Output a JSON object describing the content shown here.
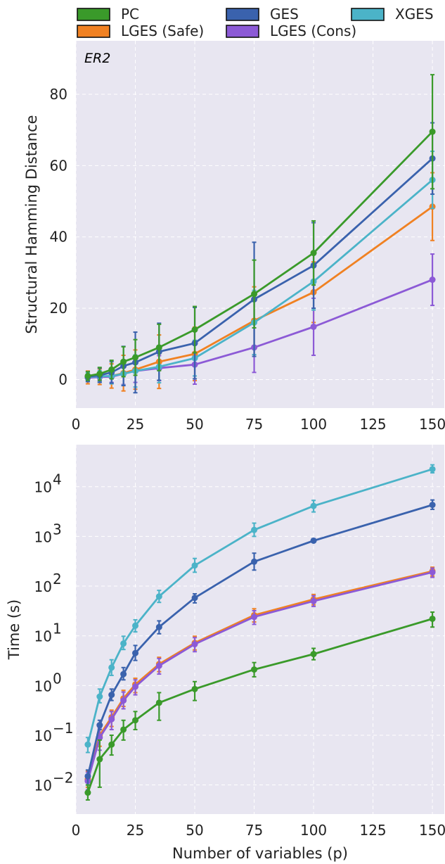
{
  "legend": [
    {
      "label": "PC",
      "color": "#3a9a2a"
    },
    {
      "label": "GES",
      "color": "#3a62ad"
    },
    {
      "label": "XGES",
      "color": "#4bb3c8"
    },
    {
      "label": "LGES (Safe)",
      "color": "#f08122"
    },
    {
      "label": "LGES (Cons)",
      "color": "#8c5ad6"
    }
  ],
  "chart_data": [
    {
      "type": "line",
      "annotation": "ER2",
      "xlabel": "",
      "ylabel": "Structural Hamming Distance",
      "x": [
        5,
        10,
        15,
        20,
        25,
        35,
        50,
        75,
        100,
        150
      ],
      "xlim": [
        0,
        155
      ],
      "ylim": [
        -8,
        95
      ],
      "xticks": [
        0,
        25,
        50,
        75,
        100,
        125,
        150
      ],
      "yticks": [
        0,
        20,
        40,
        60,
        80
      ],
      "grid": true,
      "series": [
        {
          "name": "PC",
          "color": "#3a9a2a",
          "values": [
            1.0,
            1.6,
            2.8,
            5.0,
            6.2,
            9.0,
            14.0,
            24.0,
            35.5,
            69.5
          ],
          "errors": [
            1.2,
            1.8,
            2.6,
            4.2,
            5.0,
            6.5,
            6.5,
            9.5,
            9.0,
            16.0
          ]
        },
        {
          "name": "GES",
          "color": "#3a62ad",
          "values": [
            0.8,
            1.2,
            2.0,
            3.8,
            4.8,
            7.8,
            10.2,
            22.5,
            32.0,
            62.0
          ],
          "errors": [
            1.4,
            2.0,
            3.0,
            5.5,
            8.5,
            8.0,
            10.0,
            16.0,
            12.0,
            10.0
          ]
        },
        {
          "name": "XGES",
          "color": "#4bb3c8",
          "values": [
            0.7,
            0.9,
            1.0,
            1.6,
            2.4,
            3.6,
            6.0,
            16.0,
            27.5,
            56.0
          ],
          "errors": [
            1.2,
            1.6,
            2.2,
            3.2,
            4.5,
            4.5,
            5.0,
            9.0,
            8.0,
            8.0
          ]
        },
        {
          "name": "LGES (Safe)",
          "color": "#f08122",
          "values": [
            0.6,
            0.8,
            1.0,
            1.8,
            2.8,
            5.0,
            7.2,
            16.5,
            24.5,
            48.5
          ],
          "errors": [
            1.8,
            2.2,
            3.4,
            5.0,
            5.5,
            7.5,
            7.5,
            9.5,
            8.5,
            9.5
          ]
        },
        {
          "name": "LGES (Cons)",
          "color": "#8c5ad6",
          "values": [
            0.5,
            0.7,
            0.8,
            1.6,
            2.4,
            3.2,
            4.2,
            9.0,
            14.8,
            28.0
          ],
          "errors": [
            0.8,
            1.2,
            1.6,
            3.0,
            3.2,
            3.5,
            5.5,
            7.0,
            8.0,
            7.2
          ]
        }
      ]
    },
    {
      "type": "line",
      "xlabel": "Number of variables (p)",
      "ylabel": "Time (s)",
      "yscale": "log",
      "x": [
        5,
        10,
        15,
        20,
        25,
        35,
        50,
        75,
        100,
        150
      ],
      "xlim": [
        0,
        155
      ],
      "ylim": [
        0.0026,
        70000
      ],
      "xticks": [
        0,
        25,
        50,
        75,
        100,
        125,
        150
      ],
      "yticks_exponents": [
        -2,
        -1,
        0,
        1,
        2,
        3,
        4
      ],
      "ytick_labels": [
        "10^-2",
        "10^-1",
        "10^0",
        "10^1",
        "10^2",
        "10^3",
        "10^4"
      ],
      "grid": true,
      "series": [
        {
          "name": "PC",
          "color": "#3a9a2a",
          "values": [
            0.007,
            0.033,
            0.065,
            0.13,
            0.2,
            0.45,
            0.85,
            2.1,
            4.3,
            22
          ],
          "err_low": [
            0.005,
            0.009,
            0.04,
            0.08,
            0.13,
            0.2,
            0.5,
            1.5,
            3.3,
            15
          ],
          "err_high": [
            0.01,
            0.08,
            0.1,
            0.2,
            0.3,
            0.72,
            1.2,
            2.9,
            5.6,
            30
          ]
        },
        {
          "name": "GES",
          "color": "#3a62ad",
          "values": [
            0.015,
            0.16,
            0.65,
            1.7,
            4.5,
            15,
            58,
            310,
            820,
            4300
          ],
          "err_low": [
            0.01,
            0.13,
            0.5,
            1.3,
            3.2,
            11,
            46,
            210,
            760,
            3500
          ],
          "err_high": [
            0.02,
            0.2,
            0.85,
            2.3,
            6.4,
            20,
            70,
            460,
            900,
            5400
          ]
        },
        {
          "name": "XGES",
          "color": "#4bb3c8",
          "values": [
            0.065,
            0.6,
            2.3,
            7.0,
            16,
            62,
            260,
            1350,
            4100,
            22500
          ],
          "err_low": [
            0.045,
            0.45,
            1.6,
            5.3,
            12,
            47,
            190,
            1000,
            3100,
            19000
          ],
          "err_high": [
            0.09,
            0.85,
            3.3,
            9.8,
            21,
            82,
            360,
            1850,
            5300,
            27500
          ]
        },
        {
          "name": "LGES (Safe)",
          "color": "#f08122",
          "values": [
            0.013,
            0.1,
            0.23,
            0.55,
            1.05,
            2.7,
            7.2,
            26,
            54,
            200
          ],
          "err_low": [
            0.009,
            0.06,
            0.15,
            0.38,
            0.72,
            1.9,
            5.2,
            19,
            42,
            160
          ],
          "err_high": [
            0.019,
            0.16,
            0.32,
            0.8,
            1.4,
            3.7,
            9.8,
            35,
            68,
            240
          ]
        },
        {
          "name": "LGES (Cons)",
          "color": "#8c5ad6",
          "values": [
            0.012,
            0.09,
            0.21,
            0.5,
            0.95,
            2.5,
            6.8,
            24,
            50,
            190
          ],
          "err_low": [
            0.008,
            0.05,
            0.13,
            0.34,
            0.65,
            1.7,
            4.8,
            17,
            39,
            150
          ],
          "err_high": [
            0.018,
            0.14,
            0.3,
            0.74,
            1.3,
            3.5,
            9.2,
            32,
            64,
            230
          ]
        }
      ]
    }
  ]
}
